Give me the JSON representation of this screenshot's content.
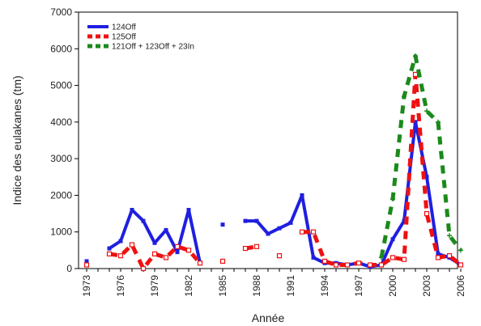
{
  "chart_data": {
    "type": "line",
    "xlabel": "Année",
    "ylabel": "Indice des eulakanes (tm)",
    "xlim": [
      1973,
      2006
    ],
    "ylim": [
      0,
      7000
    ],
    "yticks": [
      0,
      1000,
      2000,
      3000,
      4000,
      5000,
      6000,
      7000
    ],
    "xticks": [
      1973,
      1976,
      1979,
      1982,
      1985,
      1988,
      1991,
      1994,
      1997,
      2000,
      2003,
      2006
    ],
    "legend_position": "top-left",
    "series": [
      {
        "name": "124Off",
        "color": "#1f1fe0",
        "style": "solid",
        "marker": "square",
        "points": [
          [
            1973,
            200
          ],
          [
            1975,
            550
          ],
          [
            1976,
            750
          ],
          [
            1977,
            1600
          ],
          [
            1978,
            1300
          ],
          [
            1979,
            700
          ],
          [
            1980,
            1050
          ],
          [
            1981,
            450
          ],
          [
            1982,
            1600
          ],
          [
            1983,
            150
          ],
          [
            1985,
            1200
          ],
          [
            1987,
            1300
          ],
          [
            1988,
            1300
          ],
          [
            1989,
            950
          ],
          [
            1990,
            1100
          ],
          [
            1991,
            1250
          ],
          [
            1992,
            2000
          ],
          [
            1993,
            300
          ],
          [
            1994,
            150
          ],
          [
            1995,
            150
          ],
          [
            1996,
            100
          ],
          [
            1997,
            150
          ],
          [
            1998,
            50
          ],
          [
            1999,
            100
          ],
          [
            2000,
            800
          ],
          [
            2001,
            1300
          ],
          [
            2002,
            4000
          ],
          [
            2003,
            2500
          ],
          [
            2004,
            400
          ],
          [
            2005,
            300
          ],
          [
            2006,
            100
          ]
        ],
        "breaks_before": [
          1975,
          1985,
          1987
        ]
      },
      {
        "name": "125Off",
        "color": "#ee1111",
        "style": "dashed",
        "marker": "open-square",
        "points": [
          [
            1973,
            100
          ],
          [
            1975,
            400
          ],
          [
            1976,
            350
          ],
          [
            1977,
            650
          ],
          [
            1978,
            0
          ],
          [
            1979,
            400
          ],
          [
            1980,
            300
          ],
          [
            1981,
            600
          ],
          [
            1982,
            500
          ],
          [
            1983,
            150
          ],
          [
            1985,
            200
          ],
          [
            1987,
            550
          ],
          [
            1988,
            600
          ],
          [
            1990,
            350
          ],
          [
            1992,
            1000
          ],
          [
            1993,
            1000
          ],
          [
            1994,
            200
          ],
          [
            1995,
            100
          ],
          [
            1996,
            100
          ],
          [
            1997,
            150
          ],
          [
            1998,
            100
          ],
          [
            1999,
            100
          ],
          [
            2000,
            300
          ],
          [
            2001,
            250
          ],
          [
            2002,
            5300
          ],
          [
            2003,
            1500
          ],
          [
            2004,
            300
          ],
          [
            2005,
            350
          ],
          [
            2006,
            100
          ]
        ],
        "breaks_before": [
          1975,
          1985,
          1987,
          1990,
          1992
        ]
      },
      {
        "name": "121Off + 123Off + 23In",
        "color": "#1a8a1a",
        "style": "dashed",
        "marker": "plus",
        "points": [
          [
            1999,
            300
          ],
          [
            2000,
            1900
          ],
          [
            2001,
            4700
          ],
          [
            2002,
            5800
          ],
          [
            2003,
            4300
          ],
          [
            2004,
            4000
          ],
          [
            2005,
            900
          ],
          [
            2006,
            500
          ]
        ],
        "breaks_before": []
      }
    ]
  }
}
